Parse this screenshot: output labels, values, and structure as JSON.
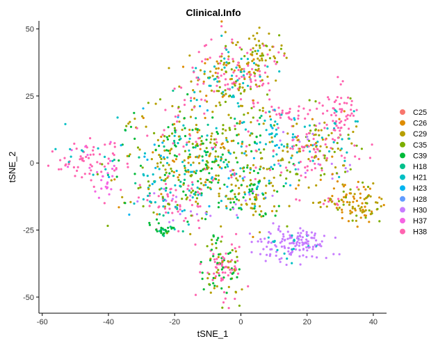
{
  "chart_data": {
    "type": "scatter",
    "title": "Clinical.Info",
    "xlabel": "tSNE_1",
    "ylabel": "tSNE_2",
    "xlim": [
      -61,
      44
    ],
    "ylim": [
      -56,
      53
    ],
    "xticks": [
      -60,
      -40,
      -20,
      0,
      20,
      40
    ],
    "yticks": [
      -50,
      -25,
      0,
      25,
      50
    ],
    "grid": false,
    "legend_position": "right",
    "series": [
      {
        "name": "C25",
        "color": "#F8766D"
      },
      {
        "name": "C26",
        "color": "#DE8C00"
      },
      {
        "name": "C29",
        "color": "#B79F00"
      },
      {
        "name": "C35",
        "color": "#7CAE00"
      },
      {
        "name": "C39",
        "color": "#00BA38"
      },
      {
        "name": "H18",
        "color": "#00C08B"
      },
      {
        "name": "H21",
        "color": "#00BFC4"
      },
      {
        "name": "H23",
        "color": "#00B4F0"
      },
      {
        "name": "H28",
        "color": "#619CFF"
      },
      {
        "name": "H30",
        "color": "#C77CFF"
      },
      {
        "name": "H37",
        "color": "#F564E3"
      },
      {
        "name": "H38",
        "color": "#FF64B0"
      }
    ],
    "clusters": [
      {
        "cx": -47,
        "cy": 2,
        "sx": 6,
        "sy": 4,
        "n": 70,
        "mix": {
          "H38": 5,
          "H21": 1,
          "H37": 1
        }
      },
      {
        "cx": -41,
        "cy": -8,
        "sx": 2,
        "sy": 4,
        "n": 25,
        "mix": {
          "H37": 4,
          "H38": 2
        }
      },
      {
        "cx": -13,
        "cy": 2,
        "sx": 12,
        "sy": 10,
        "n": 520,
        "mix": {
          "C39": 3,
          "C35": 3,
          "C29": 3,
          "H21": 2,
          "H18": 1,
          "H23": 1,
          "H38": 1,
          "C26": 1
        }
      },
      {
        "cx": -20,
        "cy": -15,
        "sx": 5,
        "sy": 5,
        "n": 90,
        "mix": {
          "H38": 3,
          "H21": 2,
          "H30": 1,
          "C35": 1
        }
      },
      {
        "cx": 2,
        "cy": -12,
        "sx": 5,
        "sy": 6,
        "n": 110,
        "mix": {
          "C29": 3,
          "C39": 3,
          "H21": 1,
          "H30": 1
        }
      },
      {
        "cx": -3,
        "cy": 32,
        "sx": 7,
        "sy": 7,
        "n": 260,
        "mix": {
          "H38": 4,
          "H21": 2,
          "C29": 2,
          "C35": 1,
          "C26": 1
        }
      },
      {
        "cx": 7,
        "cy": 40,
        "sx": 3,
        "sy": 4,
        "n": 40,
        "mix": {
          "C29": 3,
          "C35": 2
        }
      },
      {
        "cx": -23,
        "cy": -25,
        "sx": 1.5,
        "sy": 1.5,
        "n": 25,
        "mix": {
          "C39": 3,
          "H18": 2,
          "H30": 1
        }
      },
      {
        "cx": -6,
        "cy": -40,
        "sx": 3,
        "sy": 6,
        "n": 130,
        "mix": {
          "H38": 3,
          "C39": 3,
          "C35": 1,
          "C29": 1
        }
      },
      {
        "cx": 16,
        "cy": -30,
        "sx": 5,
        "sy": 3,
        "n": 150,
        "mix": {
          "H30": 6,
          "H21": 1
        }
      },
      {
        "cx": 14,
        "cy": 19,
        "sx": 3,
        "sy": 1.5,
        "n": 30,
        "mix": {
          "H38": 3,
          "H21": 1
        }
      },
      {
        "cx": 10,
        "cy": 13,
        "sx": 1.5,
        "sy": 4,
        "n": 20,
        "mix": {
          "H21": 2,
          "H23": 1
        }
      },
      {
        "cx": 22,
        "cy": 5,
        "sx": 7,
        "sy": 7,
        "n": 220,
        "mix": {
          "H38": 3,
          "C35": 2,
          "C29": 2,
          "H21": 2,
          "C26": 1,
          "H30": 1
        }
      },
      {
        "cx": 30,
        "cy": 18,
        "sx": 2.5,
        "sy": 5,
        "n": 60,
        "mix": {
          "H38": 5,
          "H21": 1
        }
      },
      {
        "cx": 35,
        "cy": -15,
        "sx": 4,
        "sy": 4,
        "n": 90,
        "mix": {
          "C26": 4,
          "C29": 2,
          "C35": 1
        }
      },
      {
        "cx": 27,
        "cy": -15,
        "sx": 2,
        "sy": 1.5,
        "n": 20,
        "mix": {
          "C29": 2,
          "H38": 1
        }
      }
    ]
  }
}
